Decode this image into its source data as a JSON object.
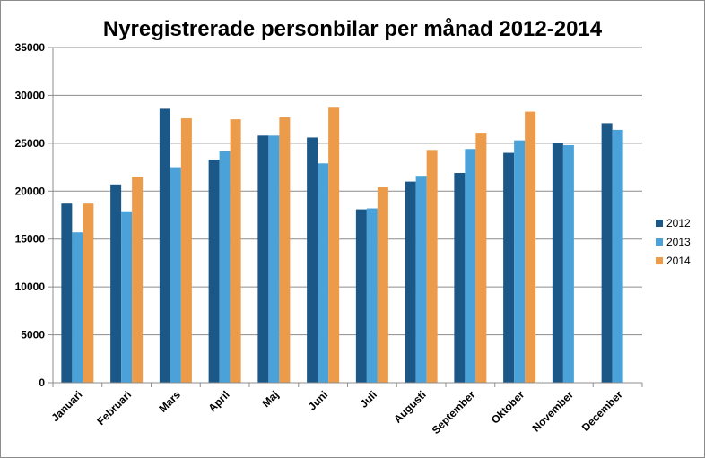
{
  "chart_data": {
    "type": "bar",
    "title": "Nyregistrerade personbilar per månad 2012-2014",
    "xlabel": "",
    "ylabel": "",
    "ylim": [
      0,
      35000
    ],
    "yticks": [
      0,
      5000,
      10000,
      15000,
      20000,
      25000,
      30000,
      35000
    ],
    "grid": true,
    "legend_position": "right",
    "categories": [
      "Januari",
      "Februari",
      "Mars",
      "April",
      "Maj",
      "Juni",
      "Juli",
      "Augusti",
      "September",
      "Oktober",
      "November",
      "December"
    ],
    "series": [
      {
        "name": "2012",
        "color": "#1b5888",
        "values": [
          18700,
          20700,
          28600,
          23300,
          25800,
          25600,
          18100,
          21000,
          21900,
          24000,
          25000,
          27100
        ]
      },
      {
        "name": "2013",
        "color": "#4aa2d8",
        "values": [
          15700,
          17900,
          22500,
          24200,
          25800,
          22900,
          18200,
          21600,
          24400,
          25300,
          24800,
          26400
        ]
      },
      {
        "name": "2014",
        "color": "#ec9b4a",
        "values": [
          18700,
          21500,
          27600,
          27500,
          27700,
          28800,
          20400,
          24300,
          26100,
          28300,
          null,
          null
        ]
      }
    ]
  }
}
